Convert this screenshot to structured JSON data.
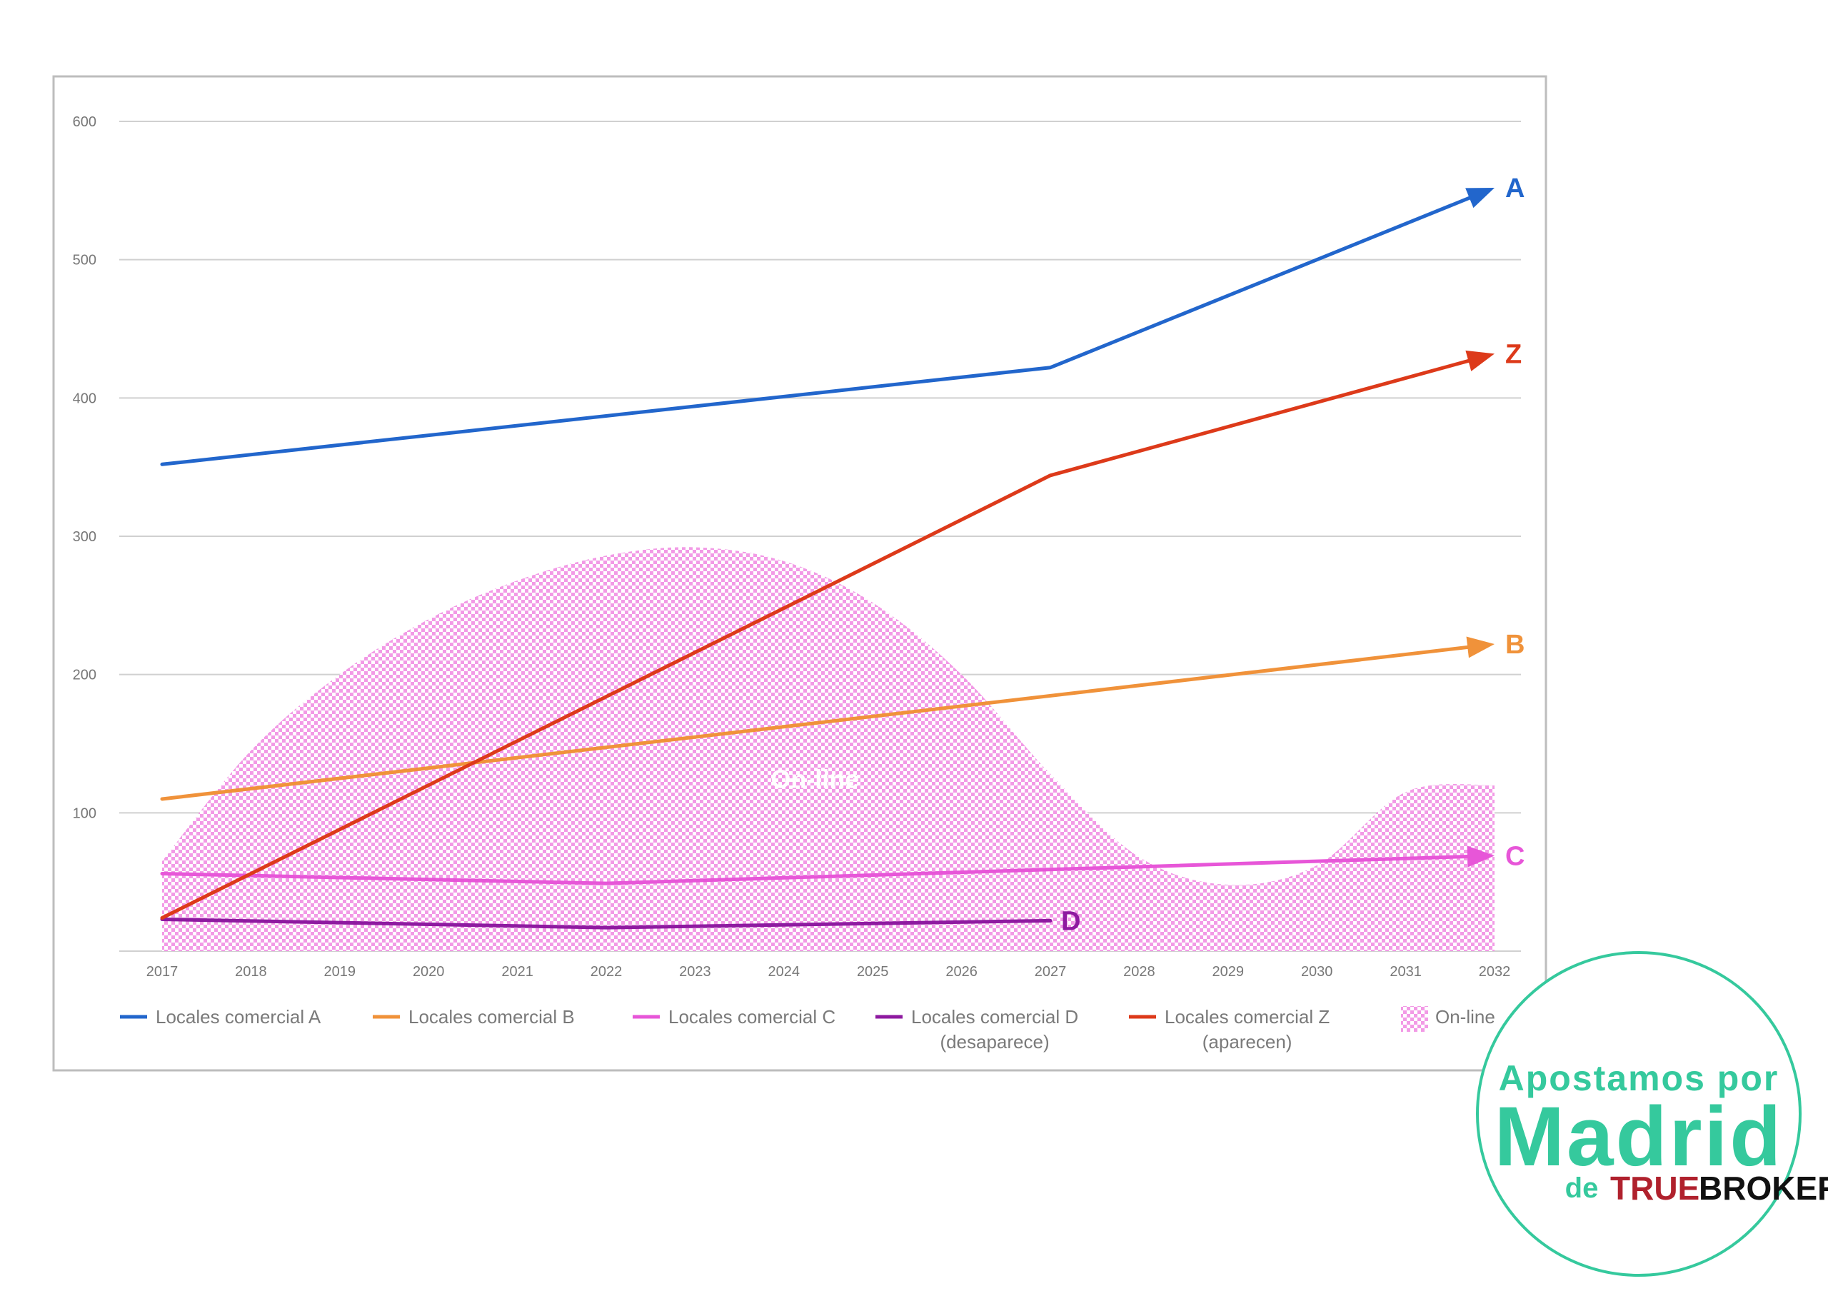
{
  "chart_data": {
    "type": "line",
    "x": [
      2017,
      2018,
      2019,
      2020,
      2021,
      2022,
      2023,
      2024,
      2025,
      2026,
      2027,
      2028,
      2029,
      2030,
      2031,
      2032
    ],
    "ylim": [
      0,
      600
    ],
    "yticks": [
      100,
      200,
      300,
      400,
      500,
      600
    ],
    "grid": true,
    "legend_position": "bottom",
    "series": [
      {
        "name": "Locales comercial A",
        "end_label": "A",
        "color": "#2266cc",
        "x": [
          2017,
          2027,
          2032
        ],
        "y": [
          352,
          422,
          552
        ]
      },
      {
        "name": "Locales comercial B",
        "end_label": "B",
        "color": "#f0923a",
        "x": [
          2017,
          2032
        ],
        "y": [
          110,
          222
        ]
      },
      {
        "name": "Locales comercial C",
        "end_label": "C",
        "color": "#e756d8",
        "x": [
          2017,
          2022,
          2032
        ],
        "y": [
          56,
          49,
          69
        ]
      },
      {
        "name": "Locales comercial D\n(desaparece)",
        "legend_line1": "Locales comercial D",
        "legend_line2": "(desaparece)",
        "end_label": "D",
        "color": "#8e1aa0",
        "x": [
          2017,
          2022,
          2027
        ],
        "y": [
          23,
          17,
          22
        ]
      },
      {
        "name": "Locales comercial  Z\n(aparecen)",
        "legend_line1": "Locales comercial  Z",
        "legend_line2": "(aparecen)",
        "end_label": "Z",
        "color": "#dd3a1a",
        "x": [
          2017,
          2027,
          2032
        ],
        "y": [
          24,
          344,
          432
        ]
      }
    ],
    "area": {
      "name": "On-line",
      "label": "On-line",
      "color": "#f29ae6",
      "x": [
        2017,
        2018,
        2019,
        2020,
        2021,
        2022,
        2023,
        2024,
        2025,
        2026,
        2027,
        2028,
        2029,
        2030,
        2031,
        2032
      ],
      "y": [
        65,
        145,
        200,
        240,
        268,
        286,
        292,
        282,
        252,
        200,
        128,
        68,
        48,
        62,
        115,
        120
      ]
    }
  },
  "logo": {
    "line1": "Apostamos por",
    "line2": "Madrid",
    "de": "de",
    "brand_part1": "TRUE",
    "brand_part2": "BROKER",
    "accent_color": "#35c99d",
    "brand_color": "#b0212d"
  }
}
